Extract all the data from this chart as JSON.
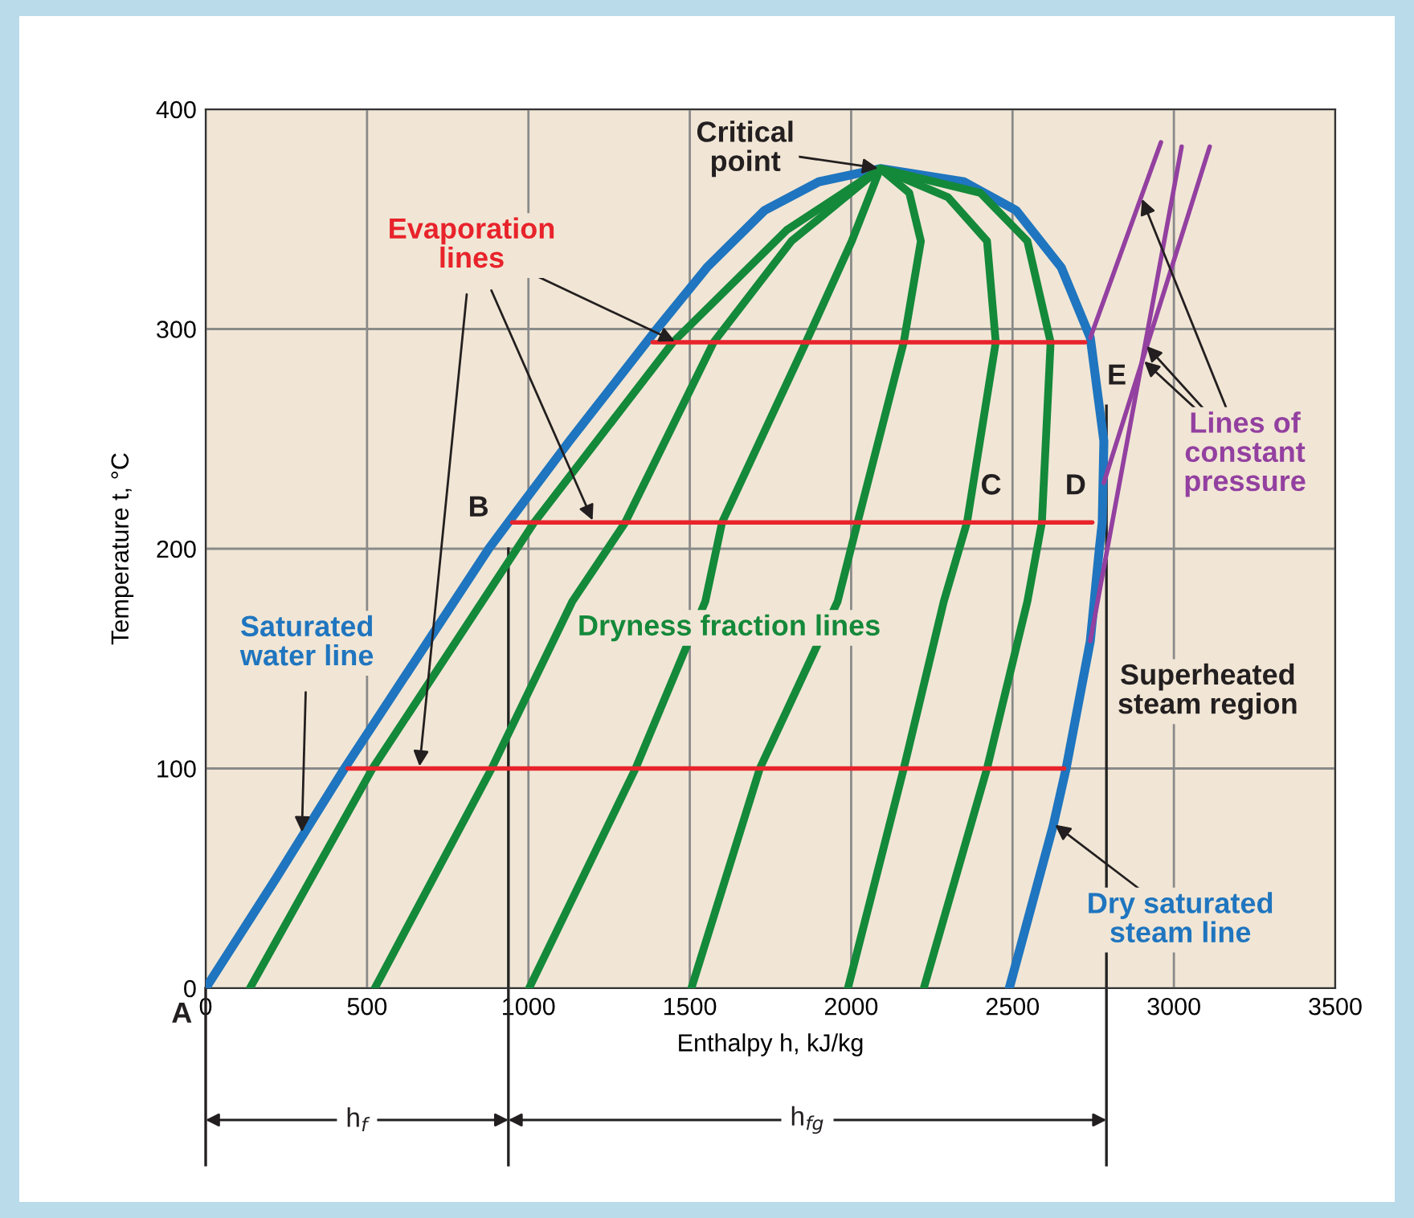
{
  "chart_data": {
    "type": "line",
    "xlabel": "Enthalpy h, kJ/kg",
    "ylabel": "Temperature t, °C",
    "xlim": [
      0,
      3500
    ],
    "ylim": [
      0,
      400
    ],
    "xticks": [
      0,
      500,
      1000,
      1500,
      2000,
      2500,
      3000,
      3500
    ],
    "yticks": [
      0,
      100,
      200,
      300,
      400
    ],
    "grid": true,
    "marker": "none",
    "line_style": "solid",
    "series": [
      {
        "color": "#1f75bf",
        "x": [
          0,
          218,
          430,
          877,
          938,
          1127,
          1398,
          1553,
          1732,
          1900,
          2090,
          2350,
          2511,
          2651,
          2741,
          2783,
          2778,
          2769,
          2741,
          2666,
          2626,
          2490
        ],
        "values": [
          0,
          50,
          100,
          200,
          212,
          249,
          300,
          328,
          354,
          367,
          373,
          367,
          354,
          328,
          296,
          249,
          212,
          200,
          158,
          100,
          74,
          0
        ]
      },
      {
        "color": "#14893a",
        "x": [
          137,
          517,
          1018,
          1448,
          1800,
          2090
        ],
        "values": [
          0,
          100,
          212,
          294,
          345,
          373
        ]
      },
      {
        "color": "#14893a",
        "x": [
          524,
          886,
          1136,
          1300,
          1574,
          1815,
          2090
        ],
        "values": [
          0,
          100,
          176,
          212,
          294,
          340,
          373
        ]
      },
      {
        "color": "#14893a",
        "x": [
          1002,
          1332,
          1548,
          1600,
          1860,
          2002,
          2090
        ],
        "values": [
          0,
          100,
          176,
          212,
          294,
          340,
          373
        ]
      },
      {
        "color": "#14893a",
        "x": [
          1505,
          1717,
          1958,
          2020,
          2163,
          2216,
          2180,
          2090
        ],
        "values": [
          0,
          100,
          176,
          212,
          294,
          340,
          362,
          373
        ]
      },
      {
        "color": "#14893a",
        "x": [
          1990,
          2163,
          2287,
          2359,
          2448,
          2421,
          2300,
          2090
        ],
        "values": [
          0,
          100,
          176,
          212,
          294,
          340,
          360,
          373
        ]
      },
      {
        "color": "#14893a",
        "x": [
          2225,
          2421,
          2546,
          2591,
          2618,
          2546,
          2400,
          2090
        ],
        "values": [
          0,
          100,
          176,
          212,
          294,
          340,
          362,
          373
        ]
      },
      {
        "color": "#e8232b",
        "x": [
          440,
          2660
        ],
        "values": [
          100,
          100
        ]
      },
      {
        "color": "#e8232b",
        "x": [
          950,
          2747
        ],
        "values": [
          212,
          212
        ]
      },
      {
        "color": "#e8232b",
        "x": [
          1385,
          2725
        ],
        "values": [
          294,
          294
        ]
      },
      {
        "color": "#9340a0",
        "x": [
          2741,
          2960
        ],
        "values": [
          296,
          385
        ]
      },
      {
        "color": "#9340a0",
        "x": [
          2741,
          3024
        ],
        "values": [
          158,
          383
        ]
      },
      {
        "color": "#9340a0",
        "x": [
          2783,
          3111
        ],
        "values": [
          230,
          383
        ]
      },
      {
        "color": "#222222",
        "x": [
          938,
          938
        ],
        "values": [
          0,
          200
        ]
      },
      {
        "color": "#222222",
        "x": [
          2791,
          2791
        ],
        "values": [
          0,
          265
        ]
      }
    ],
    "annotations": [
      {
        "text": "Critical\npoint",
        "x": 2090,
        "y": 373
      },
      {
        "text": "Evaporation\nlines",
        "x": 1460,
        "y": 294
      },
      {
        "text": "Saturated\nwater line",
        "x": 298,
        "y": 70
      },
      "Dryness fraction lines",
      "Superheated\nsteam region",
      {
        "text": "Dry saturated\nsteam line",
        "x": 2626,
        "y": 75
      },
      {
        "text": "Lines of\nconstant\npressure",
        "x": 2903,
        "y": 286
      },
      {
        "text": "A",
        "x": 0,
        "y": 0
      },
      {
        "text": "B",
        "x": 938,
        "y": 212
      },
      {
        "text": "C",
        "x": 2516,
        "y": 212
      },
      {
        "text": "D",
        "x": 2778,
        "y": 212
      },
      {
        "text": "E",
        "x": 2893,
        "y": 274
      },
      "h$_{f}$",
      "h$_{fg}$"
    ]
  }
}
